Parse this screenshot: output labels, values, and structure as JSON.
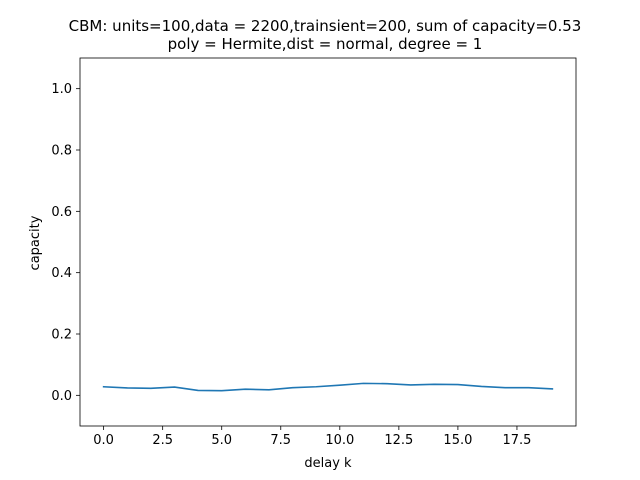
{
  "chart_data": {
    "type": "line",
    "title_line1": "CBM: units=100,data = 2200,trainsient=200, sum of capacity=0.53",
    "title_line2": "poly = Hermite,dist = normal, degree = 1",
    "xlabel": "delay k",
    "ylabel": "capacity",
    "xlim": [
      -1,
      20
    ],
    "ylim": [
      -0.1,
      1.1
    ],
    "grid": false,
    "xticks": [
      0.0,
      2.5,
      5.0,
      7.5,
      10.0,
      12.5,
      15.0,
      17.5
    ],
    "xtick_labels": [
      "0.0",
      "2.5",
      "5.0",
      "7.5",
      "10.0",
      "12.5",
      "15.0",
      "17.5"
    ],
    "yticks": [
      0.0,
      0.2,
      0.4,
      0.6,
      0.8,
      1.0
    ],
    "ytick_labels": [
      "0.0",
      "0.2",
      "0.4",
      "0.6",
      "0.8",
      "1.0"
    ],
    "line_color": "#1f77b4",
    "x": [
      0,
      1,
      2,
      3,
      4,
      5,
      6,
      7,
      8,
      9,
      10,
      11,
      12,
      13,
      14,
      15,
      16,
      17,
      18,
      19
    ],
    "values": [
      0.028,
      0.024,
      0.023,
      0.027,
      0.016,
      0.015,
      0.02,
      0.018,
      0.025,
      0.028,
      0.033,
      0.039,
      0.038,
      0.034,
      0.036,
      0.035,
      0.029,
      0.025,
      0.025,
      0.021
    ]
  }
}
